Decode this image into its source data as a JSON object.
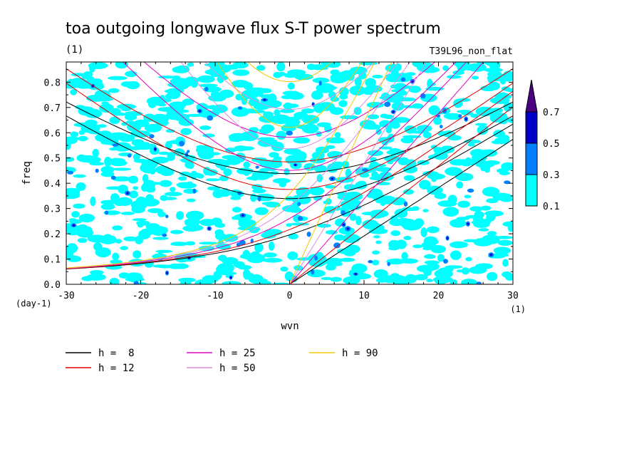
{
  "chart_data": {
    "type": "contour",
    "title": "toa outgoing longwave flux S-T power spectrum",
    "subtitle_left": "(1)",
    "subtitle_right": "T39L96_non_flat",
    "xlabel": "wvn",
    "ylabel": "freq",
    "x_unit": "(1)",
    "y_unit": "(day-1)",
    "xlim": [
      -30,
      30
    ],
    "ylim": [
      0,
      0.88
    ],
    "xticks": [
      "-30",
      "-20",
      "-10",
      "0",
      "10",
      "20",
      "30"
    ],
    "yticks": [
      "0.0",
      "0.1",
      "0.2",
      "0.3",
      "0.4",
      "0.5",
      "0.6",
      "0.7",
      "0.8"
    ],
    "colorbar": {
      "levels": [
        "0.1",
        "0.3",
        "0.5",
        "0.7"
      ],
      "colors": [
        "#00ffff",
        "#0080ff",
        "#0000c8",
        "#4b0082"
      ]
    },
    "dispersion_curves": [
      {
        "label": "h =  8",
        "h": 8,
        "color": "#000000"
      },
      {
        "label": "h = 12",
        "h": 12,
        "color": "#e00000"
      },
      {
        "label": "h = 25",
        "h": 25,
        "color": "#e000c0"
      },
      {
        "label": "h = 50",
        "h": 50,
        "color": "#dc8cdc"
      },
      {
        "label": "h = 90",
        "h": 90,
        "color": "#f0c800"
      }
    ]
  }
}
